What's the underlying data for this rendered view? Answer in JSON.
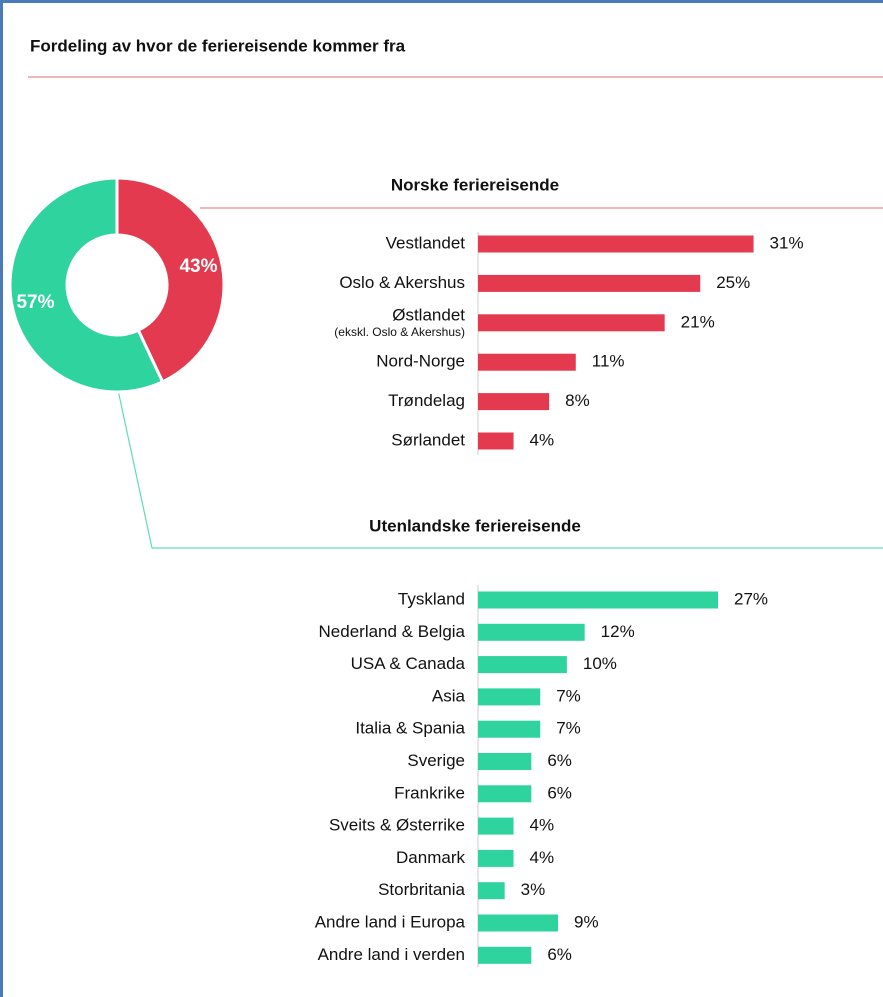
{
  "title": "Fordeling av hvor de feriereisende kommer fra",
  "chart_data": [
    {
      "type": "donut",
      "values": [
        43,
        57
      ],
      "value_labels": [
        "43%",
        "57%"
      ],
      "colors": [
        "#e33a4f",
        "#2fd39e"
      ]
    },
    {
      "type": "bar",
      "orientation": "horizontal",
      "title": "Norske feriereisende",
      "categories": [
        "Vestlandet",
        "Oslo & Akershus",
        "Østlandet",
        "Nord-Norge",
        "Trøndelag",
        "Sørlandet"
      ],
      "category_notes": [
        null,
        null,
        "(ekskl. Oslo & Akershus)",
        null,
        null,
        null
      ],
      "values": [
        31,
        25,
        21,
        11,
        8,
        4
      ],
      "value_labels": [
        "31%",
        "25%",
        "21%",
        "11%",
        "8%",
        "4%"
      ],
      "color": "#e33a4f",
      "xlim": [
        0,
        45
      ]
    },
    {
      "type": "bar",
      "orientation": "horizontal",
      "title": "Utenlandske feriereisende",
      "categories": [
        "Tyskland",
        "Nederland & Belgia",
        "USA & Canada",
        "Asia",
        "Italia & Spania",
        "Sverige",
        "Frankrike",
        "Sveits & Østerrike",
        "Danmark",
        "Storbritania",
        "Andre land i Europa",
        "Andre land i verden"
      ],
      "values": [
        27,
        12,
        10,
        7,
        7,
        6,
        6,
        4,
        4,
        3,
        9,
        6
      ],
      "value_labels": [
        "27%",
        "12%",
        "10%",
        "7%",
        "7%",
        "6%",
        "6%",
        "4%",
        "4%",
        "3%",
        "9%",
        "6%"
      ],
      "color": "#2fd39e",
      "xlim": [
        0,
        45
      ]
    }
  ]
}
